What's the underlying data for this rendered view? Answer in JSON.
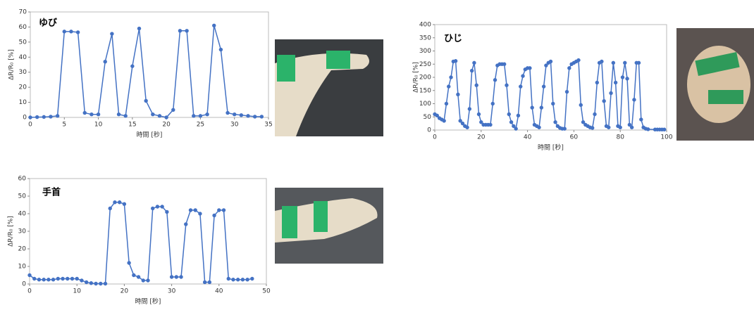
{
  "chart_data": [
    {
      "type": "line",
      "title": "ゆび",
      "xlabel": "時間 [秒]",
      "ylabel": "ΔR/R₀ [%]",
      "color": "#4472c4",
      "x": [
        0,
        1,
        2,
        3,
        4,
        5,
        6,
        7,
        8,
        9,
        10,
        11,
        12,
        13,
        14,
        15,
        16,
        17,
        18,
        19,
        20,
        21,
        22,
        23,
        24,
        25,
        26,
        27,
        28,
        29,
        30,
        31,
        32,
        33,
        34
      ],
      "values": [
        0,
        0.2,
        0.3,
        0.5,
        1,
        57,
        57,
        56.5,
        3,
        2,
        2,
        37,
        55.5,
        2,
        1,
        34,
        59,
        11,
        2,
        1,
        0,
        5,
        57.5,
        57.5,
        1,
        1,
        2,
        61,
        45,
        3,
        2,
        1.5,
        1,
        0.5,
        0.5
      ],
      "xlim": [
        0,
        35
      ],
      "xticks": [
        0,
        5,
        10,
        15,
        20,
        25,
        30,
        35
      ],
      "ylim": [
        0,
        70
      ],
      "yticks": [
        0,
        10,
        20,
        30,
        40,
        50,
        60,
        70
      ]
    },
    {
      "type": "line",
      "title": "ひじ",
      "xlabel": "時間 [秒]",
      "ylabel": "ΔR/R₀ [%]",
      "color": "#4472c4",
      "x": [
        0,
        1,
        2,
        3,
        4,
        5,
        6,
        7,
        8,
        9,
        10,
        11,
        12,
        13,
        14,
        15,
        16,
        17,
        18,
        19,
        20,
        21,
        22,
        23,
        24,
        25,
        26,
        27,
        28,
        29,
        30,
        31,
        32,
        33,
        34,
        35,
        36,
        37,
        38,
        39,
        40,
        41,
        42,
        43,
        44,
        45,
        46,
        47,
        48,
        49,
        50,
        51,
        52,
        53,
        54,
        55,
        56,
        57,
        58,
        59,
        60,
        61,
        62,
        63,
        64,
        65,
        66,
        67,
        68,
        69,
        70,
        71,
        72,
        73,
        74,
        75,
        76,
        77,
        78,
        79,
        80,
        81,
        82,
        83,
        84,
        85,
        86,
        87,
        88,
        89,
        90,
        91,
        92,
        95,
        96,
        97,
        98,
        99
      ],
      "values": [
        60,
        55,
        45,
        40,
        35,
        100,
        165,
        200,
        260,
        262,
        135,
        35,
        25,
        15,
        10,
        80,
        225,
        255,
        170,
        60,
        30,
        20,
        20,
        20,
        20,
        100,
        190,
        245,
        250,
        250,
        250,
        170,
        60,
        30,
        15,
        5,
        55,
        165,
        205,
        230,
        235,
        235,
        85,
        20,
        15,
        10,
        85,
        165,
        245,
        255,
        260,
        100,
        30,
        15,
        8,
        5,
        5,
        145,
        235,
        250,
        255,
        260,
        265,
        95,
        30,
        20,
        15,
        10,
        8,
        60,
        180,
        255,
        260,
        110,
        15,
        10,
        140,
        255,
        180,
        15,
        10,
        200,
        255,
        195,
        20,
        10,
        115,
        255,
        255,
        40,
        10,
        5,
        3,
        2,
        2,
        2,
        2,
        2
      ],
      "xlim": [
        0,
        100
      ],
      "xticks": [
        0,
        20,
        40,
        60,
        80,
        100
      ],
      "ylim": [
        0,
        400
      ],
      "yticks": [
        0,
        50,
        100,
        150,
        200,
        250,
        300,
        350,
        400
      ]
    },
    {
      "type": "line",
      "title": "手首",
      "xlabel": "時間 [秒]",
      "ylabel": "ΔR/R₀ [%]",
      "color": "#4472c4",
      "x": [
        0,
        1,
        2,
        3,
        4,
        5,
        6,
        7,
        8,
        9,
        10,
        11,
        12,
        13,
        14,
        15,
        16,
        17,
        18,
        19,
        20,
        21,
        22,
        23,
        24,
        25,
        26,
        27,
        28,
        29,
        30,
        31,
        32,
        33,
        34,
        35,
        36,
        37,
        38,
        39,
        40,
        41,
        42,
        43,
        44,
        45,
        46,
        47
      ],
      "values": [
        5,
        3,
        2.5,
        2.5,
        2.5,
        2.5,
        3,
        3,
        3,
        3,
        3,
        2,
        1,
        0.5,
        0.2,
        0.2,
        0.2,
        43,
        46.5,
        46.5,
        45.5,
        12,
        5,
        4,
        2,
        2,
        43,
        44,
        44,
        41,
        4,
        4,
        4,
        34,
        42,
        42,
        40,
        1,
        1,
        39,
        42,
        42,
        3,
        2.5,
        2.5,
        2.5,
        2.5,
        3
      ],
      "xlim": [
        0,
        50
      ],
      "xticks": [
        0,
        10,
        20,
        30,
        40,
        50
      ],
      "ylim": [
        0,
        60
      ],
      "yticks": [
        0,
        10,
        20,
        30,
        40,
        50,
        60
      ]
    }
  ]
}
